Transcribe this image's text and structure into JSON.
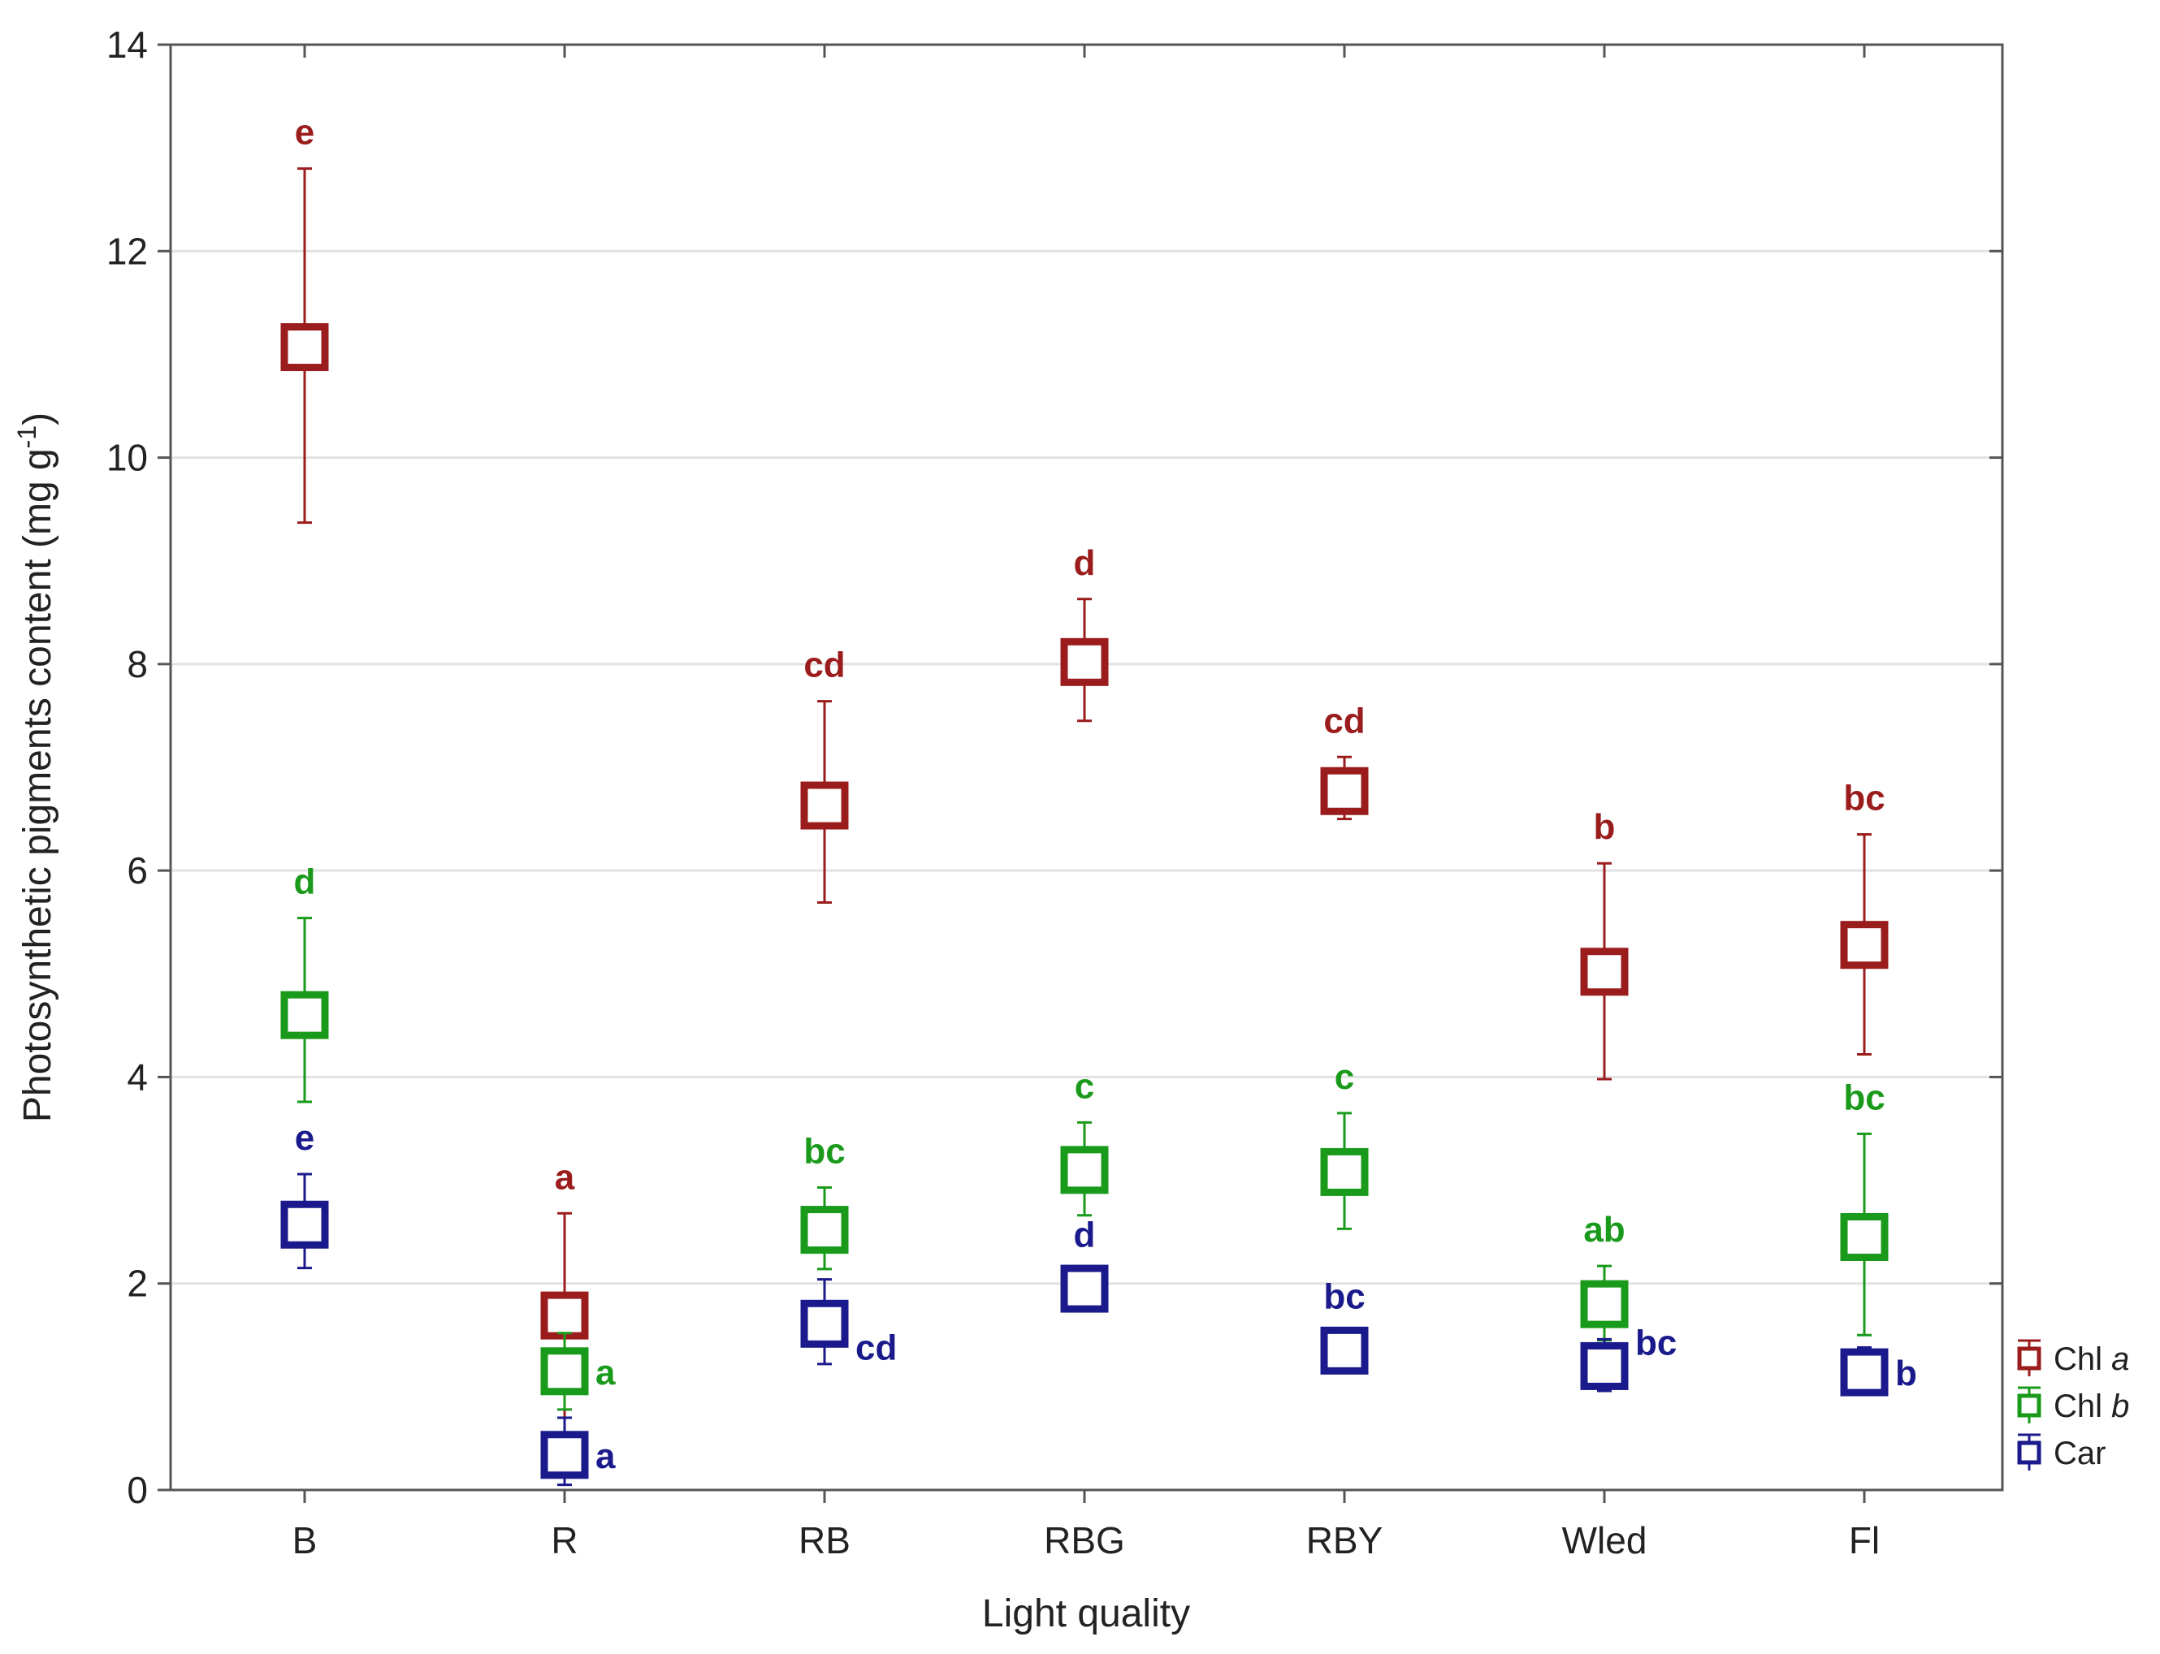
{
  "chart_data": {
    "type": "scatter",
    "title": "",
    "xlabel": "Light quality",
    "ylabel": "Photosynthetic pigments content (mg g",
    "ylabel_sup": "-1",
    "ylabel_close": ")",
    "ylim": [
      0,
      14
    ],
    "yticks": [
      0,
      2,
      4,
      6,
      8,
      10,
      12,
      14
    ],
    "grid": true,
    "legend_position": "right",
    "categories": [
      "B",
      "R",
      "RB",
      "RBG",
      "RBY",
      "Wled",
      "Fl"
    ],
    "series": [
      {
        "name": "Chl",
        "name_italic": "a",
        "color": "#9b1c1c",
        "means": [
          11.07,
          1.69,
          6.63,
          8.02,
          6.77,
          5.02,
          5.28
        ],
        "upper": [
          12.8,
          2.68,
          7.64,
          8.63,
          7.1,
          6.07,
          6.35
        ],
        "lower": [
          9.37,
          0.7,
          5.69,
          7.45,
          6.5,
          3.98,
          4.22
        ],
        "letters": [
          "e",
          "a",
          "cd",
          "d",
          "cd",
          "b",
          "bc"
        ]
      },
      {
        "name": "Chl",
        "name_italic": "b",
        "color": "#1a9a1a",
        "means": [
          4.6,
          1.15,
          2.52,
          3.1,
          3.08,
          1.8,
          2.45
        ],
        "upper": [
          5.54,
          1.52,
          2.93,
          3.56,
          3.65,
          2.17,
          3.45
        ],
        "lower": [
          3.76,
          0.78,
          2.14,
          2.66,
          2.53,
          1.45,
          1.5
        ],
        "letters": [
          "d",
          "a",
          "bc",
          "c",
          "c",
          "ab",
          "bc"
        ]
      },
      {
        "name": "Car",
        "name_italic": "",
        "color": "#1a1a8c",
        "means": [
          2.57,
          0.34,
          1.61,
          1.95,
          1.35,
          1.2,
          1.14
        ],
        "upper": [
          3.06,
          0.7,
          2.04,
          2.12,
          1.52,
          1.46,
          1.38
        ],
        "lower": [
          2.15,
          0.05,
          1.22,
          1.8,
          1.2,
          0.96,
          0.92
        ],
        "letters": [
          "e",
          "a",
          "cd",
          "d",
          "bc",
          "bc",
          "b"
        ]
      }
    ]
  }
}
